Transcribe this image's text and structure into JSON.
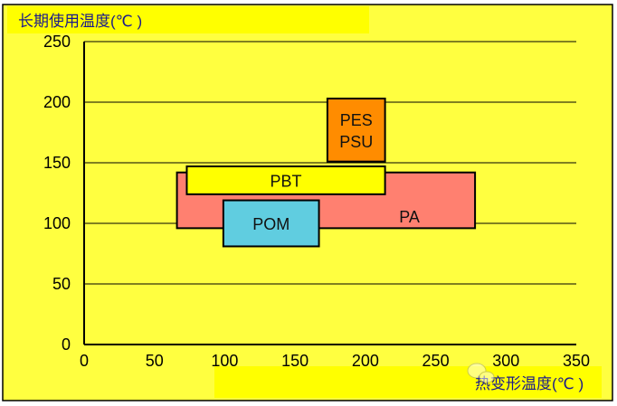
{
  "chart_data": {
    "type": "range-box",
    "title": "",
    "ylabel": "长期使用温度(℃ )",
    "xlabel": "热变形温度(℃ )",
    "xlim": [
      0,
      350
    ],
    "ylim": [
      0,
      250
    ],
    "x_ticks": [
      "0",
      "50",
      "100",
      "150",
      "200",
      "250",
      "300",
      "350"
    ],
    "y_ticks": [
      "0",
      "50",
      "100",
      "150",
      "200",
      "250"
    ],
    "grid": "horizontal",
    "series": [
      {
        "name": "PA",
        "label_lines": [
          "PA"
        ],
        "x_range": [
          66,
          278
        ],
        "y_range": [
          96,
          142
        ],
        "color": "#ff8070"
      },
      {
        "name": "PBT",
        "label_lines": [
          "PBT"
        ],
        "x_range": [
          73,
          214
        ],
        "y_range": [
          124,
          147
        ],
        "color": "#ffff00"
      },
      {
        "name": "POM",
        "label_lines": [
          "POM"
        ],
        "x_range": [
          99,
          167
        ],
        "y_range": [
          81,
          119
        ],
        "color": "#60cde0"
      },
      {
        "name": "PES/PSU",
        "label_lines": [
          "PES",
          "PSU"
        ],
        "x_range": [
          173,
          214
        ],
        "y_range": [
          151,
          203
        ],
        "color": "#ff8c00"
      }
    ],
    "background_color": "#ffff40"
  },
  "watermark": "艾邦高分子"
}
